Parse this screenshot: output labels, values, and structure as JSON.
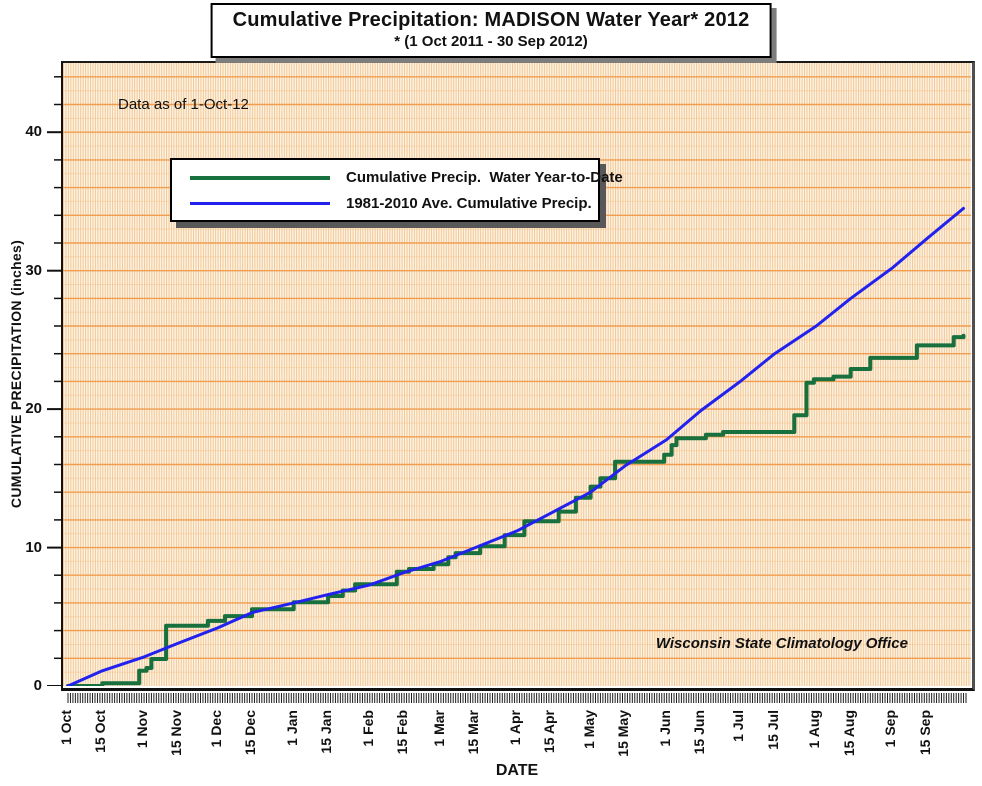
{
  "title_box": {
    "line1": "Cumulative Precipitation: MADISON Water Year* 2012",
    "line2": "* (1 Oct 2011 - 30 Sep 2012)"
  },
  "plot": {
    "data_note": "Data as of 1-Oct-12",
    "attribution": "Wisconsin State Climatology Office"
  },
  "axes": {
    "x_title": "DATE",
    "y_title": "CUMULATIVE PRECIPITATION (inches)"
  },
  "legend": {
    "items": [
      {
        "label": "Cumulative Precip.  Water Year-to-Date",
        "color": "#17703E",
        "thickness": 4
      },
      {
        "label": "1981-2010 Ave. Cumulative Precip.",
        "color": "#2222EE",
        "thickness": 3
      }
    ]
  },
  "colors": {
    "plot_base": "#FDF4E6",
    "day_stripe": "#F2C896",
    "grid_minor": "#F7C894",
    "grid_major": "#F09D4F",
    "axis": "#111111",
    "shadow": "#7d7d7d"
  },
  "chart_data": {
    "type": "line",
    "title": "Cumulative Precipitation: MADISON Water Year* 2012",
    "subtitle": "* (1 Oct 2011 - 30 Sep 2012)",
    "xlabel": "DATE",
    "ylabel": "CUMULATIVE PRECIPITATION (inches)",
    "ylim": [
      0,
      45
    ],
    "y_major_ticks": [
      0,
      10,
      20,
      30,
      40
    ],
    "y_minor_step": 2,
    "grid_step_inches": 1,
    "x_unit": "day of water year (0 = 1 Oct 2011)",
    "x_days_total": 366,
    "x_ticks": [
      {
        "label": "1 Oct",
        "day": 0
      },
      {
        "label": "15 Oct",
        "day": 14
      },
      {
        "label": "1 Nov",
        "day": 31
      },
      {
        "label": "15 Nov",
        "day": 45
      },
      {
        "label": "1 Dec",
        "day": 61
      },
      {
        "label": "15 Dec",
        "day": 75
      },
      {
        "label": "1 Jan",
        "day": 92
      },
      {
        "label": "15 Jan",
        "day": 106
      },
      {
        "label": "1 Feb",
        "day": 123
      },
      {
        "label": "15 Feb",
        "day": 137
      },
      {
        "label": "1 Mar",
        "day": 152
      },
      {
        "label": "15 Mar",
        "day": 166
      },
      {
        "label": "1 Apr",
        "day": 183
      },
      {
        "label": "15 Apr",
        "day": 197
      },
      {
        "label": "1 May",
        "day": 213
      },
      {
        "label": "15 May",
        "day": 227
      },
      {
        "label": "1 Jun",
        "day": 244
      },
      {
        "label": "15 Jun",
        "day": 258
      },
      {
        "label": "1 Jul",
        "day": 274
      },
      {
        "label": "15 Jul",
        "day": 288
      },
      {
        "label": "1 Aug",
        "day": 305
      },
      {
        "label": "15 Aug",
        "day": 319
      },
      {
        "label": "1 Sep",
        "day": 336
      },
      {
        "label": "15 Sep",
        "day": 350
      }
    ],
    "series": [
      {
        "name": "Cumulative Precip.  Water Year-to-Date",
        "color": "#17703E",
        "width": 4,
        "style": "step",
        "points": [
          [
            0,
            0
          ],
          [
            14,
            0.2
          ],
          [
            29,
            1.1
          ],
          [
            32,
            1.3
          ],
          [
            34,
            1.95
          ],
          [
            40,
            4.35
          ],
          [
            57,
            4.7
          ],
          [
            64,
            5.05
          ],
          [
            75,
            5.55
          ],
          [
            92,
            6.05
          ],
          [
            106,
            6.5
          ],
          [
            112,
            6.9
          ],
          [
            117,
            7.35
          ],
          [
            134,
            8.25
          ],
          [
            139,
            8.45
          ],
          [
            149,
            8.8
          ],
          [
            155,
            9.3
          ],
          [
            158,
            9.6
          ],
          [
            168,
            10.1
          ],
          [
            178,
            10.9
          ],
          [
            186,
            11.9
          ],
          [
            200,
            12.6
          ],
          [
            207,
            13.6
          ],
          [
            213,
            14.4
          ],
          [
            217,
            15.0
          ],
          [
            223,
            16.2
          ],
          [
            243,
            16.7
          ],
          [
            246,
            17.4
          ],
          [
            248,
            17.9
          ],
          [
            260,
            18.15
          ],
          [
            267,
            18.35
          ],
          [
            296,
            19.55
          ],
          [
            301,
            21.9
          ],
          [
            304,
            22.15
          ],
          [
            312,
            22.35
          ],
          [
            319,
            22.9
          ],
          [
            327,
            23.7
          ],
          [
            346,
            24.6
          ],
          [
            361,
            25.2
          ],
          [
            365,
            25.3
          ]
        ]
      },
      {
        "name": "1981-2010 Ave. Cumulative Precip.",
        "color": "#2222EE",
        "width": 3,
        "style": "smooth",
        "points": [
          [
            0,
            0
          ],
          [
            14,
            1.1
          ],
          [
            31,
            2.1
          ],
          [
            45,
            3.1
          ],
          [
            61,
            4.2
          ],
          [
            75,
            5.3
          ],
          [
            92,
            6.0
          ],
          [
            106,
            6.6
          ],
          [
            123,
            7.3
          ],
          [
            137,
            8.2
          ],
          [
            152,
            9.0
          ],
          [
            166,
            10.0
          ],
          [
            183,
            11.2
          ],
          [
            197,
            12.5
          ],
          [
            213,
            14.0
          ],
          [
            227,
            15.9
          ],
          [
            244,
            17.8
          ],
          [
            258,
            19.9
          ],
          [
            274,
            22.0
          ],
          [
            288,
            24.0
          ],
          [
            305,
            26.0
          ],
          [
            319,
            28.0
          ],
          [
            336,
            30.2
          ],
          [
            350,
            32.3
          ],
          [
            365,
            34.5
          ]
        ]
      }
    ],
    "legend_position": "upper-left",
    "grid": true,
    "annotations": [
      "Data as of 1-Oct-12",
      "Wisconsin State Climatology Office"
    ]
  }
}
